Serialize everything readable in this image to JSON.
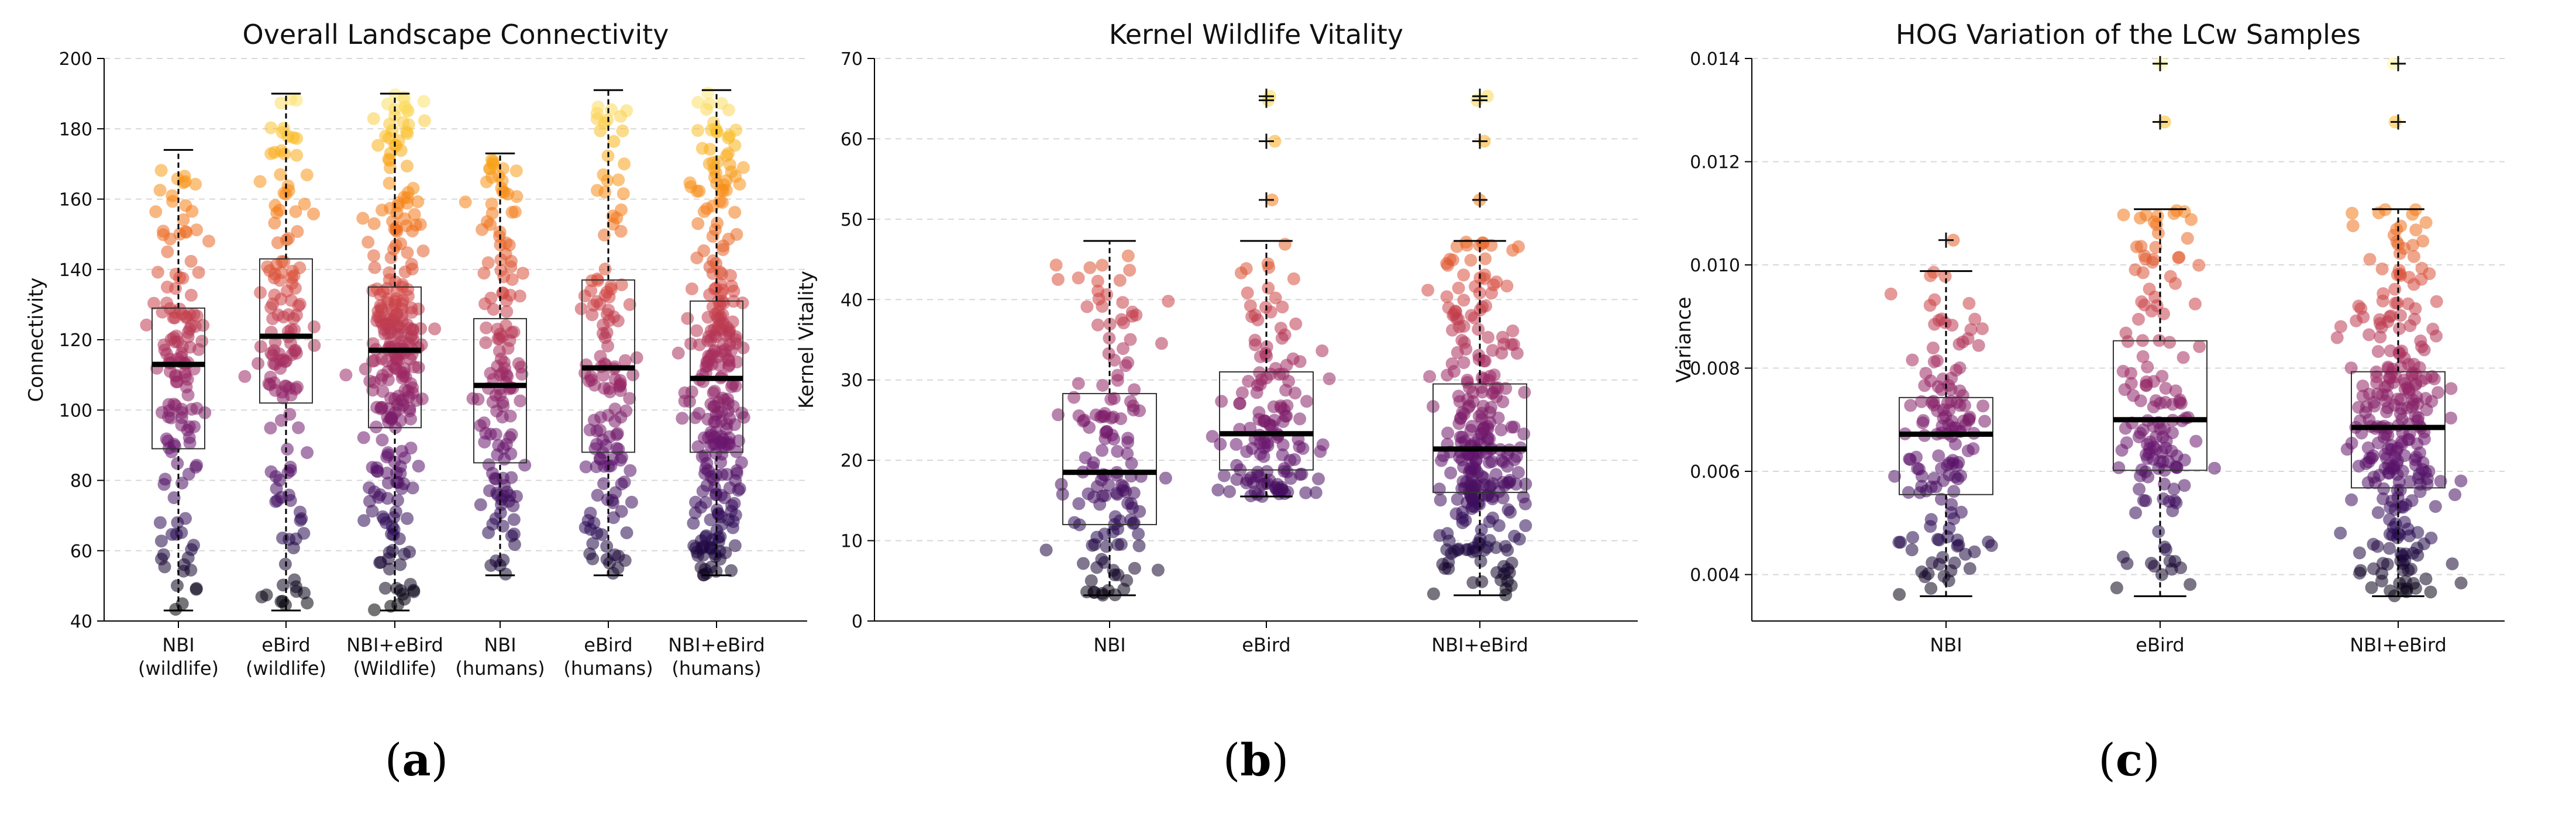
{
  "chart_data": [
    {
      "type": "boxplot-strip",
      "title": "Overall Landscape Connectivity",
      "xlabel": "",
      "ylabel": "Connectivity",
      "ylim": [
        40,
        200
      ],
      "yticks": [
        40,
        60,
        80,
        100,
        120,
        140,
        160,
        180,
        200
      ],
      "grid": "horizontal-dashed",
      "colormap": "inferno",
      "categories": [
        [
          "NBI",
          "(wildlife)"
        ],
        [
          "eBird",
          "(wildlife)"
        ],
        [
          "NBI+eBird",
          "(Wildlife)"
        ],
        [
          "NBI",
          "(humans)"
        ],
        [
          "eBird",
          "(humans)"
        ],
        [
          "NBI+eBird",
          "(humans)"
        ]
      ],
      "boxes": [
        {
          "whisker_low": 43,
          "q1": 89,
          "median": 113,
          "q3": 129,
          "whisker_high": 174,
          "n_points": 140,
          "outliers": []
        },
        {
          "whisker_low": 43,
          "q1": 102,
          "median": 121,
          "q3": 143,
          "whisker_high": 190,
          "n_points": 140,
          "outliers": []
        },
        {
          "whisker_low": 43,
          "q1": 95,
          "median": 117,
          "q3": 135,
          "whisker_high": 190,
          "n_points": 280,
          "outliers": []
        },
        {
          "whisker_low": 53,
          "q1": 85,
          "median": 107,
          "q3": 126,
          "whisker_high": 173,
          "n_points": 140,
          "outliers": []
        },
        {
          "whisker_low": 53,
          "q1": 88,
          "median": 112,
          "q3": 137,
          "whisker_high": 191,
          "n_points": 140,
          "outliers": []
        },
        {
          "whisker_low": 53,
          "q1": 88,
          "median": 109,
          "q3": 131,
          "whisker_high": 191,
          "n_points": 280,
          "outliers": []
        }
      ],
      "panel_label": [
        "(",
        "a",
        ")"
      ]
    },
    {
      "type": "boxplot-strip",
      "title": "Kernel Wildlife Vitality",
      "xlabel": "",
      "ylabel": "Kernel Vitality",
      "ylim": [
        0,
        70
      ],
      "yticks": [
        0,
        10,
        20,
        30,
        40,
        50,
        60,
        70
      ],
      "grid": "horizontal-dashed",
      "colormap": "inferno",
      "categories": [
        [
          "NBI"
        ],
        [
          "eBird"
        ],
        [
          "NBI+eBird"
        ]
      ],
      "boxes": [
        {
          "whisker_low": 3.2,
          "q1": 12,
          "median": 18.5,
          "q3": 28.3,
          "whisker_high": 47.3,
          "n_points": 140,
          "outliers": []
        },
        {
          "whisker_low": 15.5,
          "q1": 18.8,
          "median": 23.3,
          "q3": 31,
          "whisker_high": 47.3,
          "n_points": 140,
          "outliers": [
            52.4,
            59.7,
            64.8,
            65.3
          ]
        },
        {
          "whisker_low": 3.2,
          "q1": 16,
          "median": 21.4,
          "q3": 29.5,
          "whisker_high": 47.3,
          "n_points": 280,
          "outliers": [
            52.4,
            59.7,
            64.8,
            65.3
          ]
        }
      ],
      "panel_label": [
        "(",
        "b",
        ")"
      ]
    },
    {
      "type": "boxplot-strip",
      "title": "HOG Variation of the LCw Samples",
      "xlabel": "",
      "ylabel": "Variance",
      "ylim": [
        0.0031,
        0.014
      ],
      "yticks": [
        0.004,
        0.006,
        0.008,
        0.01,
        0.012,
        0.014
      ],
      "ytick_labels": [
        "0.004",
        "0.006",
        "0.008",
        "0.010",
        "0.012",
        "0.014"
      ],
      "grid": "horizontal-dashed",
      "colormap": "inferno",
      "categories": [
        [
          "NBI"
        ],
        [
          "eBird"
        ],
        [
          "NBI+eBird"
        ]
      ],
      "boxes": [
        {
          "whisker_low": 0.00358,
          "q1": 0.00555,
          "median": 0.00672,
          "q3": 0.00743,
          "whisker_high": 0.00988,
          "n_points": 140,
          "outliers": [
            0.01048
          ]
        },
        {
          "whisker_low": 0.00358,
          "q1": 0.00602,
          "median": 0.007,
          "q3": 0.00853,
          "whisker_high": 0.01108,
          "n_points": 140,
          "outliers": [
            0.01277,
            0.0139
          ]
        },
        {
          "whisker_low": 0.00358,
          "q1": 0.00568,
          "median": 0.00685,
          "q3": 0.00793,
          "whisker_high": 0.01108,
          "n_points": 280,
          "outliers": [
            0.01277,
            0.0139
          ]
        }
      ],
      "panel_label": [
        "(",
        "c",
        ")"
      ]
    }
  ]
}
